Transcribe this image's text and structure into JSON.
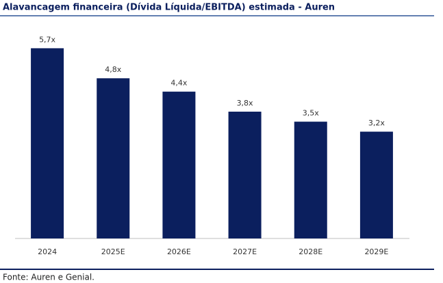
{
  "chart_data": {
    "type": "bar",
    "title": "Alavancagem financeira (Dívida Líquida/EBITDA) estimada - Auren",
    "categories": [
      "2024",
      "2025E",
      "2026E",
      "2027E",
      "2028E",
      "2029E"
    ],
    "values": [
      5.7,
      4.8,
      4.4,
      3.8,
      3.5,
      3.2
    ],
    "value_labels": [
      "5,7x",
      "4,8x",
      "4,4x",
      "3,8x",
      "3,5x",
      "3,2x"
    ],
    "color": "#0b1f5e",
    "source": "Fonte: Auren e Genial."
  }
}
